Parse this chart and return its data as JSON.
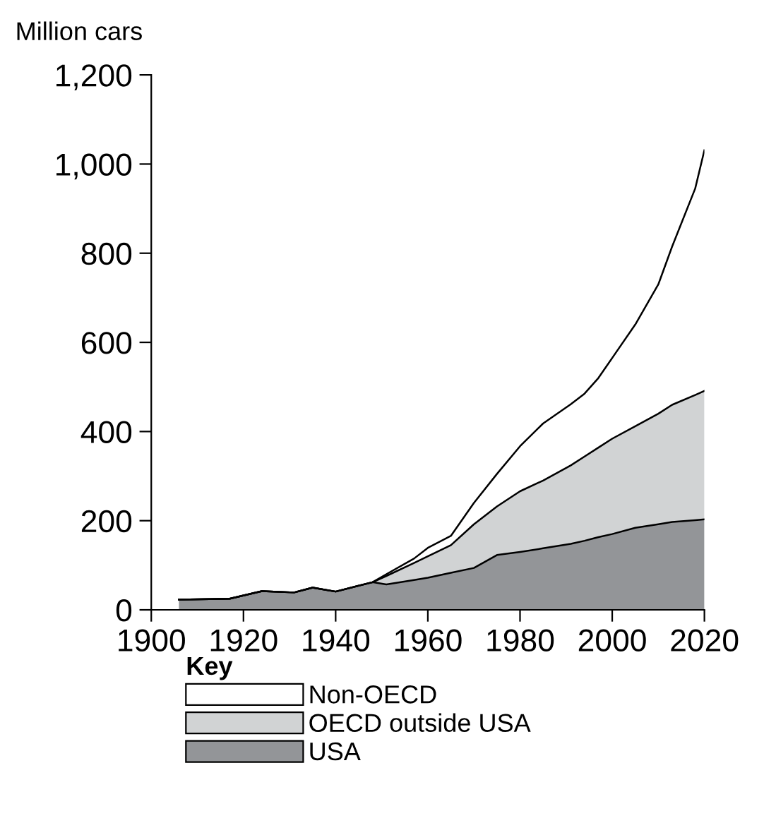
{
  "chart_data": {
    "type": "area",
    "stacked": true,
    "ylabel": "Million cars",
    "legend_title": "Key",
    "legend": "bottom",
    "grid": false,
    "x": [
      1906,
      1917,
      1924,
      1931,
      1935,
      1940,
      1948,
      1951,
      1957,
      1960,
      1965,
      1970,
      1975,
      1980,
      1985,
      1991,
      1994,
      1997,
      2000,
      2005,
      2010,
      2013,
      2018,
      2020
    ],
    "series": [
      {
        "name": "USA",
        "color": "#939598",
        "values": [
          23,
          25,
          42,
          39,
          50,
          41,
          62,
          57,
          67,
          72,
          83,
          94,
          123,
          130,
          138,
          148,
          155,
          163,
          170,
          184,
          192,
          197,
          201,
          203
        ]
      },
      {
        "name": "OECD outside USA",
        "color": "#d1d3d4",
        "values": [
          0,
          0,
          0,
          0,
          0,
          0,
          0,
          19,
          38,
          48,
          62,
          98,
          109,
          136,
          152,
          176,
          189,
          201,
          214,
          228,
          248,
          263,
          281,
          288
        ]
      },
      {
        "name": "Non-OECD",
        "color": "#ffffff",
        "values": [
          0,
          0,
          0,
          0,
          0,
          0,
          0,
          4,
          10,
          19,
          21,
          48,
          73,
          101,
          128,
          137,
          141,
          156,
          181,
          228,
          290,
          355,
          463,
          540
        ]
      }
    ],
    "xlim": [
      1900,
      2020
    ],
    "xticks": [
      1900,
      1920,
      1940,
      1960,
      1980,
      2000,
      2020
    ],
    "ylim": [
      0,
      1200
    ],
    "yticks": [
      0,
      200,
      400,
      600,
      800,
      {
        "value": 1000,
        "label": "1,000"
      },
      {
        "value": 1200,
        "label": "1,200"
      }
    ]
  }
}
